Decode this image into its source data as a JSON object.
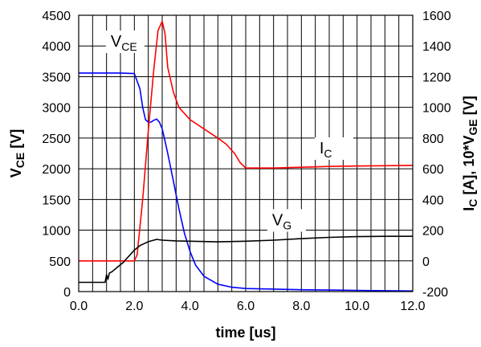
{
  "chart_data": {
    "type": "line",
    "xlabel": "time [us]",
    "ylabel_left": {
      "main": "V",
      "sub": "CE",
      "unit": " [V]"
    },
    "ylabel_right": {
      "p1": "I",
      "s1": "C",
      "p2": " [A], 10*V",
      "s2": "GE",
      "p3": " [V]"
    },
    "xlim": [
      0,
      12
    ],
    "ylim_left": [
      0,
      4500
    ],
    "ylim_right": [
      -200,
      1600
    ],
    "x_ticks": [
      "0.0",
      "2.0",
      "4.0",
      "6.0",
      "8.0",
      "10.0",
      "12.0"
    ],
    "x_tick_values": [
      0,
      2,
      4,
      6,
      8,
      10,
      12
    ],
    "y_left_ticks": [
      "0",
      "500",
      "1000",
      "1500",
      "2000",
      "2500",
      "3000",
      "3500",
      "4000",
      "4500"
    ],
    "y_left_tick_values": [
      0,
      500,
      1000,
      1500,
      2000,
      2500,
      3000,
      3500,
      4000,
      4500
    ],
    "y_right_ticks": [
      "-200",
      "0",
      "200",
      "400",
      "600",
      "800",
      "1000",
      "1200",
      "1400",
      "1600"
    ],
    "y_right_tick_values": [
      -200,
      0,
      200,
      400,
      600,
      800,
      1000,
      1200,
      1400,
      1600
    ],
    "grid": true,
    "series": [
      {
        "id": "vce",
        "axis": "left",
        "color": "#0000ff",
        "x": [
          0.0,
          0.5,
          1.0,
          1.5,
          2.0,
          2.2,
          2.3,
          2.4,
          2.5,
          2.6,
          2.7,
          2.8,
          2.9,
          3.0,
          3.1,
          3.2,
          3.4,
          3.6,
          3.8,
          4.0,
          4.2,
          4.5,
          5.0,
          5.5,
          6.0,
          7.0,
          8.0,
          9.0,
          10.0,
          11.0,
          12.0
        ],
        "y": [
          3560,
          3560,
          3560,
          3560,
          3550,
          3300,
          3000,
          2800,
          2760,
          2760,
          2790,
          2810,
          2760,
          2650,
          2450,
          2250,
          1800,
          1350,
          950,
          650,
          430,
          250,
          120,
          70,
          50,
          40,
          30,
          25,
          20,
          15,
          10
        ]
      },
      {
        "id": "ic",
        "axis": "right",
        "color": "#ff0000",
        "x": [
          0.0,
          1.0,
          1.5,
          2.0,
          2.1,
          2.3,
          2.5,
          2.7,
          2.85,
          3.0,
          3.1,
          3.2,
          3.4,
          3.6,
          3.8,
          4.0,
          4.5,
          5.0,
          5.3,
          5.6,
          5.8,
          6.0,
          7.0,
          8.0,
          9.0,
          10.0,
          11.0,
          12.0
        ],
        "y": [
          0,
          0,
          0,
          0,
          40,
          400,
          850,
          1250,
          1500,
          1560,
          1480,
          1260,
          1100,
          1000,
          960,
          920,
          860,
          800,
          760,
          700,
          640,
          605,
          605,
          610,
          615,
          618,
          620,
          622
        ]
      },
      {
        "id": "vg",
        "axis": "right",
        "color": "#000000",
        "x": [
          0.0,
          0.5,
          0.95,
          1.0,
          1.05,
          1.1,
          1.2,
          1.4,
          1.6,
          1.8,
          2.0,
          2.2,
          2.5,
          2.8,
          3.0,
          3.5,
          4.0,
          5.0,
          6.0,
          7.0,
          8.0,
          9.0,
          10.0,
          11.0,
          12.0
        ],
        "y": [
          -140,
          -140,
          -140,
          -90,
          -120,
          -80,
          -70,
          -40,
          -10,
          30,
          70,
          100,
          125,
          140,
          135,
          130,
          128,
          124,
          128,
          135,
          145,
          153,
          158,
          160,
          160
        ]
      }
    ],
    "annotations": [
      {
        "id": "vce",
        "text": "V",
        "sub": "CE",
        "x": 1.15,
        "y_axis": "left",
        "y": 3990
      },
      {
        "id": "ic",
        "text": "I",
        "sub": "C",
        "x": 8.65,
        "y_axis": "left",
        "y": 2250
      },
      {
        "id": "vg",
        "text": "V",
        "sub": "G",
        "x": 6.95,
        "y_axis": "left",
        "y": 1080
      }
    ]
  }
}
